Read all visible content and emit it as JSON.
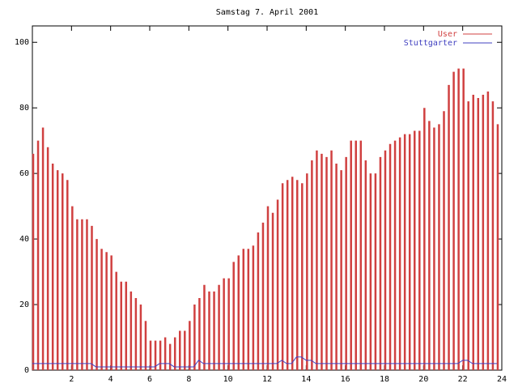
{
  "chart_data": {
    "type": "impulse-line",
    "title": "Samstag 7. April 2001",
    "x": [
      0,
      0.25,
      0.5,
      0.75,
      1,
      1.25,
      1.5,
      1.75,
      2,
      2.25,
      2.5,
      2.75,
      3,
      3.25,
      3.5,
      3.75,
      4,
      4.25,
      4.5,
      4.75,
      5,
      5.25,
      5.5,
      5.75,
      6,
      6.25,
      6.5,
      6.75,
      7,
      7.25,
      7.5,
      7.75,
      8,
      8.25,
      8.5,
      8.75,
      9,
      9.25,
      9.5,
      9.75,
      10,
      10.25,
      10.5,
      10.75,
      11,
      11.25,
      11.5,
      11.75,
      12,
      12.25,
      12.5,
      12.75,
      13,
      13.25,
      13.5,
      13.75,
      14,
      14.25,
      14.5,
      14.75,
      15,
      15.25,
      15.5,
      15.75,
      16,
      16.25,
      16.5,
      16.75,
      17,
      17.25,
      17.5,
      17.75,
      18,
      18.25,
      18.5,
      18.75,
      19,
      19.25,
      19.5,
      19.75,
      20,
      20.25,
      20.5,
      20.75,
      21,
      21.25,
      21.5,
      21.75,
      22,
      22.25,
      22.5,
      22.75,
      23,
      23.25,
      23.5,
      23.75
    ],
    "series": [
      {
        "name": "User",
        "color": "#d04040",
        "style": "impulses",
        "values": [
          66,
          70,
          74,
          68,
          63,
          61,
          60,
          58,
          50,
          46,
          46,
          46,
          44,
          40,
          37,
          36,
          35,
          30,
          27,
          27,
          24,
          22,
          20,
          15,
          9,
          9,
          9,
          10,
          8,
          10,
          12,
          12,
          15,
          20,
          22,
          26,
          24,
          24,
          26,
          28,
          28,
          33,
          35,
          37,
          37,
          38,
          42,
          45,
          50,
          48,
          52,
          57,
          58,
          59,
          58,
          57,
          60,
          64,
          67,
          66,
          65,
          67,
          63,
          61,
          65,
          70,
          70,
          70,
          64,
          60,
          60,
          65,
          67,
          69,
          70,
          71,
          72,
          72,
          73,
          73,
          80,
          76,
          74,
          75,
          79,
          87,
          91,
          92,
          92,
          82,
          84,
          83,
          84,
          85,
          82,
          75
        ]
      },
      {
        "name": "Stuttgarter",
        "color": "#4040c0",
        "style": "line",
        "values": [
          2,
          2,
          2,
          2,
          2,
          2,
          2,
          2,
          2,
          2,
          2,
          2,
          2,
          1,
          1,
          1,
          1,
          1,
          1,
          1,
          1,
          1,
          1,
          1,
          1,
          1,
          2,
          2,
          2,
          1,
          1,
          1,
          1,
          1,
          3,
          2,
          2,
          2,
          2,
          2,
          2,
          2,
          2,
          2,
          2,
          2,
          2,
          2,
          2,
          2,
          2,
          3,
          2,
          2,
          4,
          4,
          3,
          3,
          2,
          2,
          2,
          2,
          2,
          2,
          2,
          2,
          2,
          2,
          2,
          2,
          2,
          2,
          2,
          2,
          2,
          2,
          2,
          2,
          2,
          2,
          2,
          2,
          2,
          2,
          2,
          2,
          2,
          2,
          3,
          3,
          2,
          2,
          2,
          2,
          2,
          2
        ]
      }
    ],
    "xlim": [
      0,
      24
    ],
    "xticks": [
      2,
      4,
      6,
      8,
      10,
      12,
      14,
      16,
      18,
      20,
      22,
      24
    ],
    "ylim": [
      0,
      105
    ],
    "yticks": [
      0,
      20,
      40,
      60,
      80,
      100
    ],
    "legend": "top-right"
  }
}
